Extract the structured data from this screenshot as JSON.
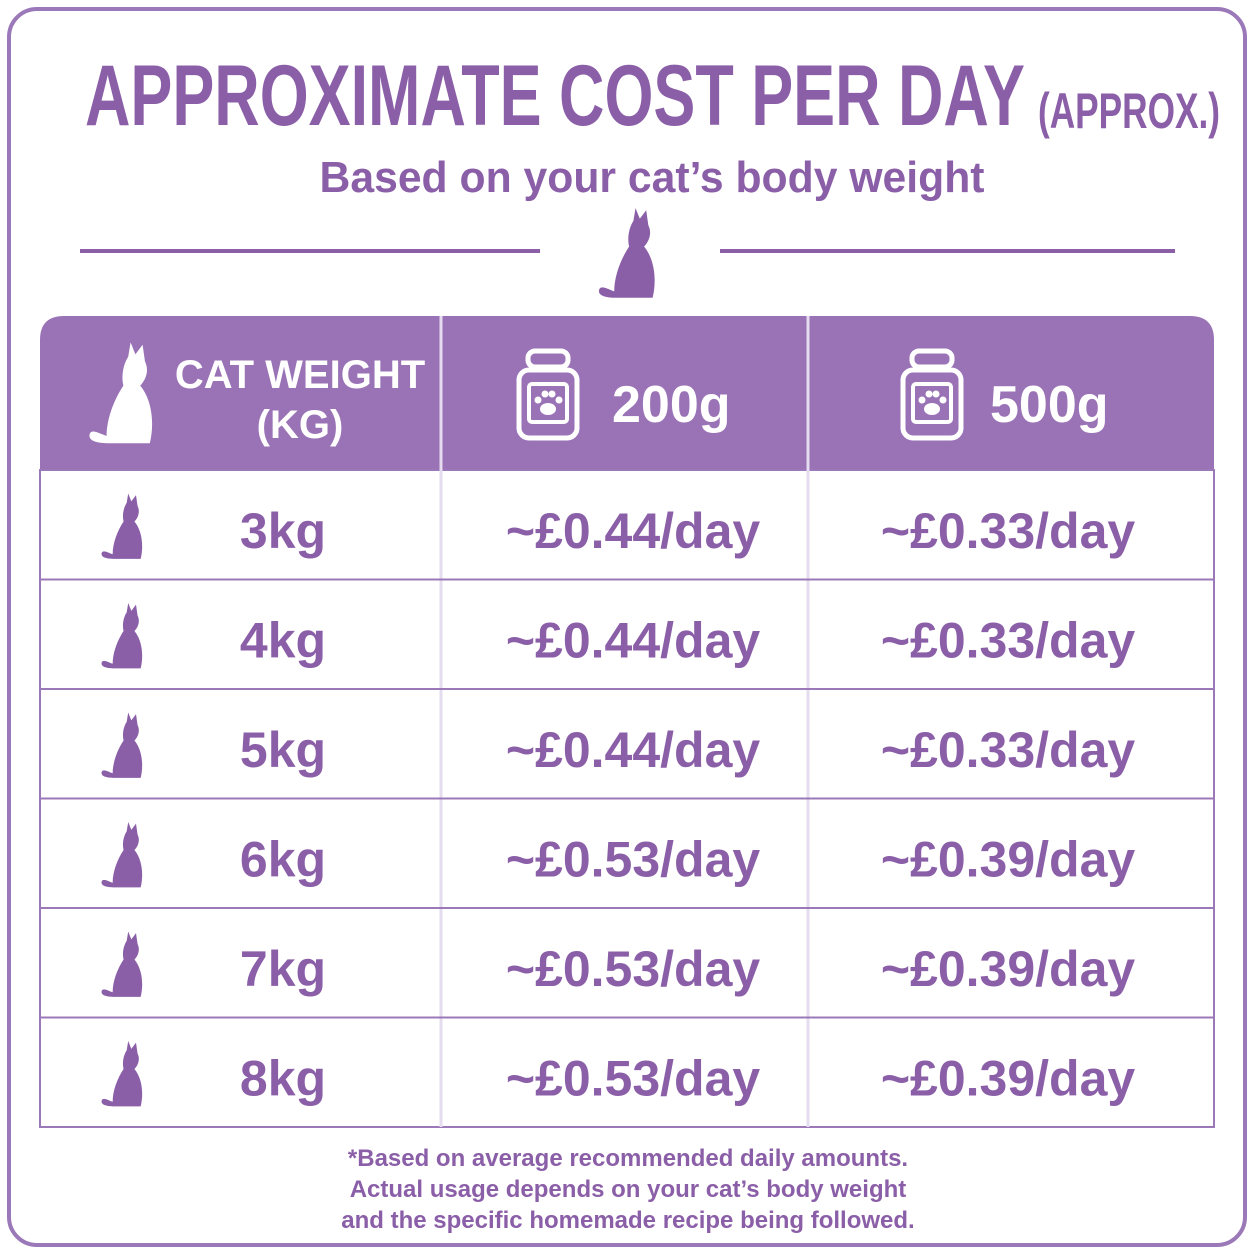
{
  "header": {
    "title": "APPROXIMATE COST PER DAY",
    "title_suffix": "(APPROX.)",
    "subtitle": "Based on your cat’s body weight"
  },
  "table": {
    "columns": [
      [
        "CAT WEIGHT",
        "(KG)"
      ],
      [
        "200g"
      ],
      [
        "500g"
      ]
    ],
    "rows": [
      [
        "3kg",
        "~£0.44/day",
        "~£0.33/day"
      ],
      [
        "4kg",
        "~£0.44/day",
        "~£0.33/day"
      ],
      [
        "5kg",
        "~£0.44/day",
        "~£0.33/day"
      ],
      [
        "6kg",
        "~£0.53/day",
        "~£0.39/day"
      ],
      [
        "7kg",
        "~£0.53/day",
        "~£0.39/day"
      ],
      [
        "8kg",
        "~£0.53/day",
        "~£0.39/day"
      ]
    ]
  },
  "footnote": [
    "*Based on average recommended daily amounts.",
    "Actual usage depends on your cat’s body weight",
    "and the specific homemade recipe being followed."
  ]
}
